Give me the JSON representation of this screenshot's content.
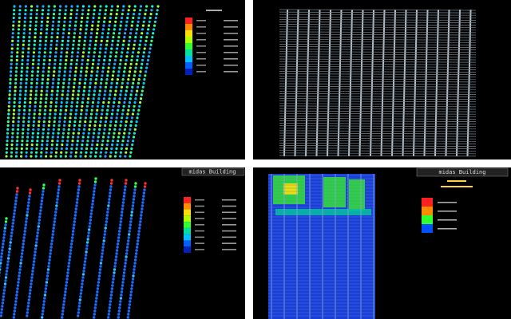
{
  "panels": [
    {
      "header": null
    },
    {
      "header": null
    },
    {
      "header": "midas Building"
    },
    {
      "header": "midas Building"
    }
  ]
}
